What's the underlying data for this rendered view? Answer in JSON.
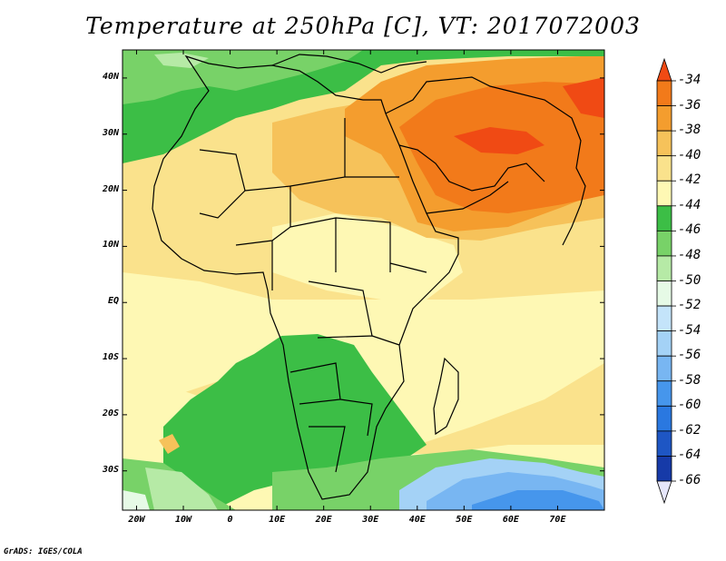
{
  "title": "Temperature at 250hPa [C], VT: 2017072003",
  "credit": "GrADS: IGES/COLA",
  "map": {
    "projection": "latlon",
    "lon_range": [
      -23,
      80
    ],
    "lat_range": [
      -37,
      45
    ],
    "lat_ticks": [
      {
        "value": 40,
        "label": "40N"
      },
      {
        "value": 30,
        "label": "30N"
      },
      {
        "value": 20,
        "label": "20N"
      },
      {
        "value": 10,
        "label": "10N"
      },
      {
        "value": 0,
        "label": "EQ"
      },
      {
        "value": -10,
        "label": "10S"
      },
      {
        "value": -20,
        "label": "20S"
      },
      {
        "value": -30,
        "label": "30S"
      }
    ],
    "lon_ticks": [
      {
        "value": -20,
        "label": "20W"
      },
      {
        "value": -10,
        "label": "10W"
      },
      {
        "value": 0,
        "label": "0"
      },
      {
        "value": 10,
        "label": "10E"
      },
      {
        "value": 20,
        "label": "20E"
      },
      {
        "value": 30,
        "label": "30E"
      },
      {
        "value": 40,
        "label": "40E"
      },
      {
        "value": 50,
        "label": "50E"
      },
      {
        "value": 60,
        "label": "60E"
      },
      {
        "value": 70,
        "label": "70E"
      }
    ]
  },
  "colorbar": {
    "units": "C",
    "levels": [
      "-34",
      "-36",
      "-38",
      "-40",
      "-42",
      "-44",
      "-46",
      "-48",
      "-50",
      "-52",
      "-54",
      "-56",
      "-58",
      "-60",
      "-62",
      "-64",
      "-66"
    ],
    "colors": [
      "#f04a14",
      "#f27a1a",
      "#f49d2e",
      "#f6c25a",
      "#fae28c",
      "#fef8b4",
      "#3cbe46",
      "#78d268",
      "#b6eaa6",
      "#e6fae6",
      "#c4e4fa",
      "#a4d2f6",
      "#78b6f2",
      "#4696ec",
      "#2a78e0",
      "#1e56c4",
      "#163aa8",
      "#0c1a78"
    ]
  }
}
